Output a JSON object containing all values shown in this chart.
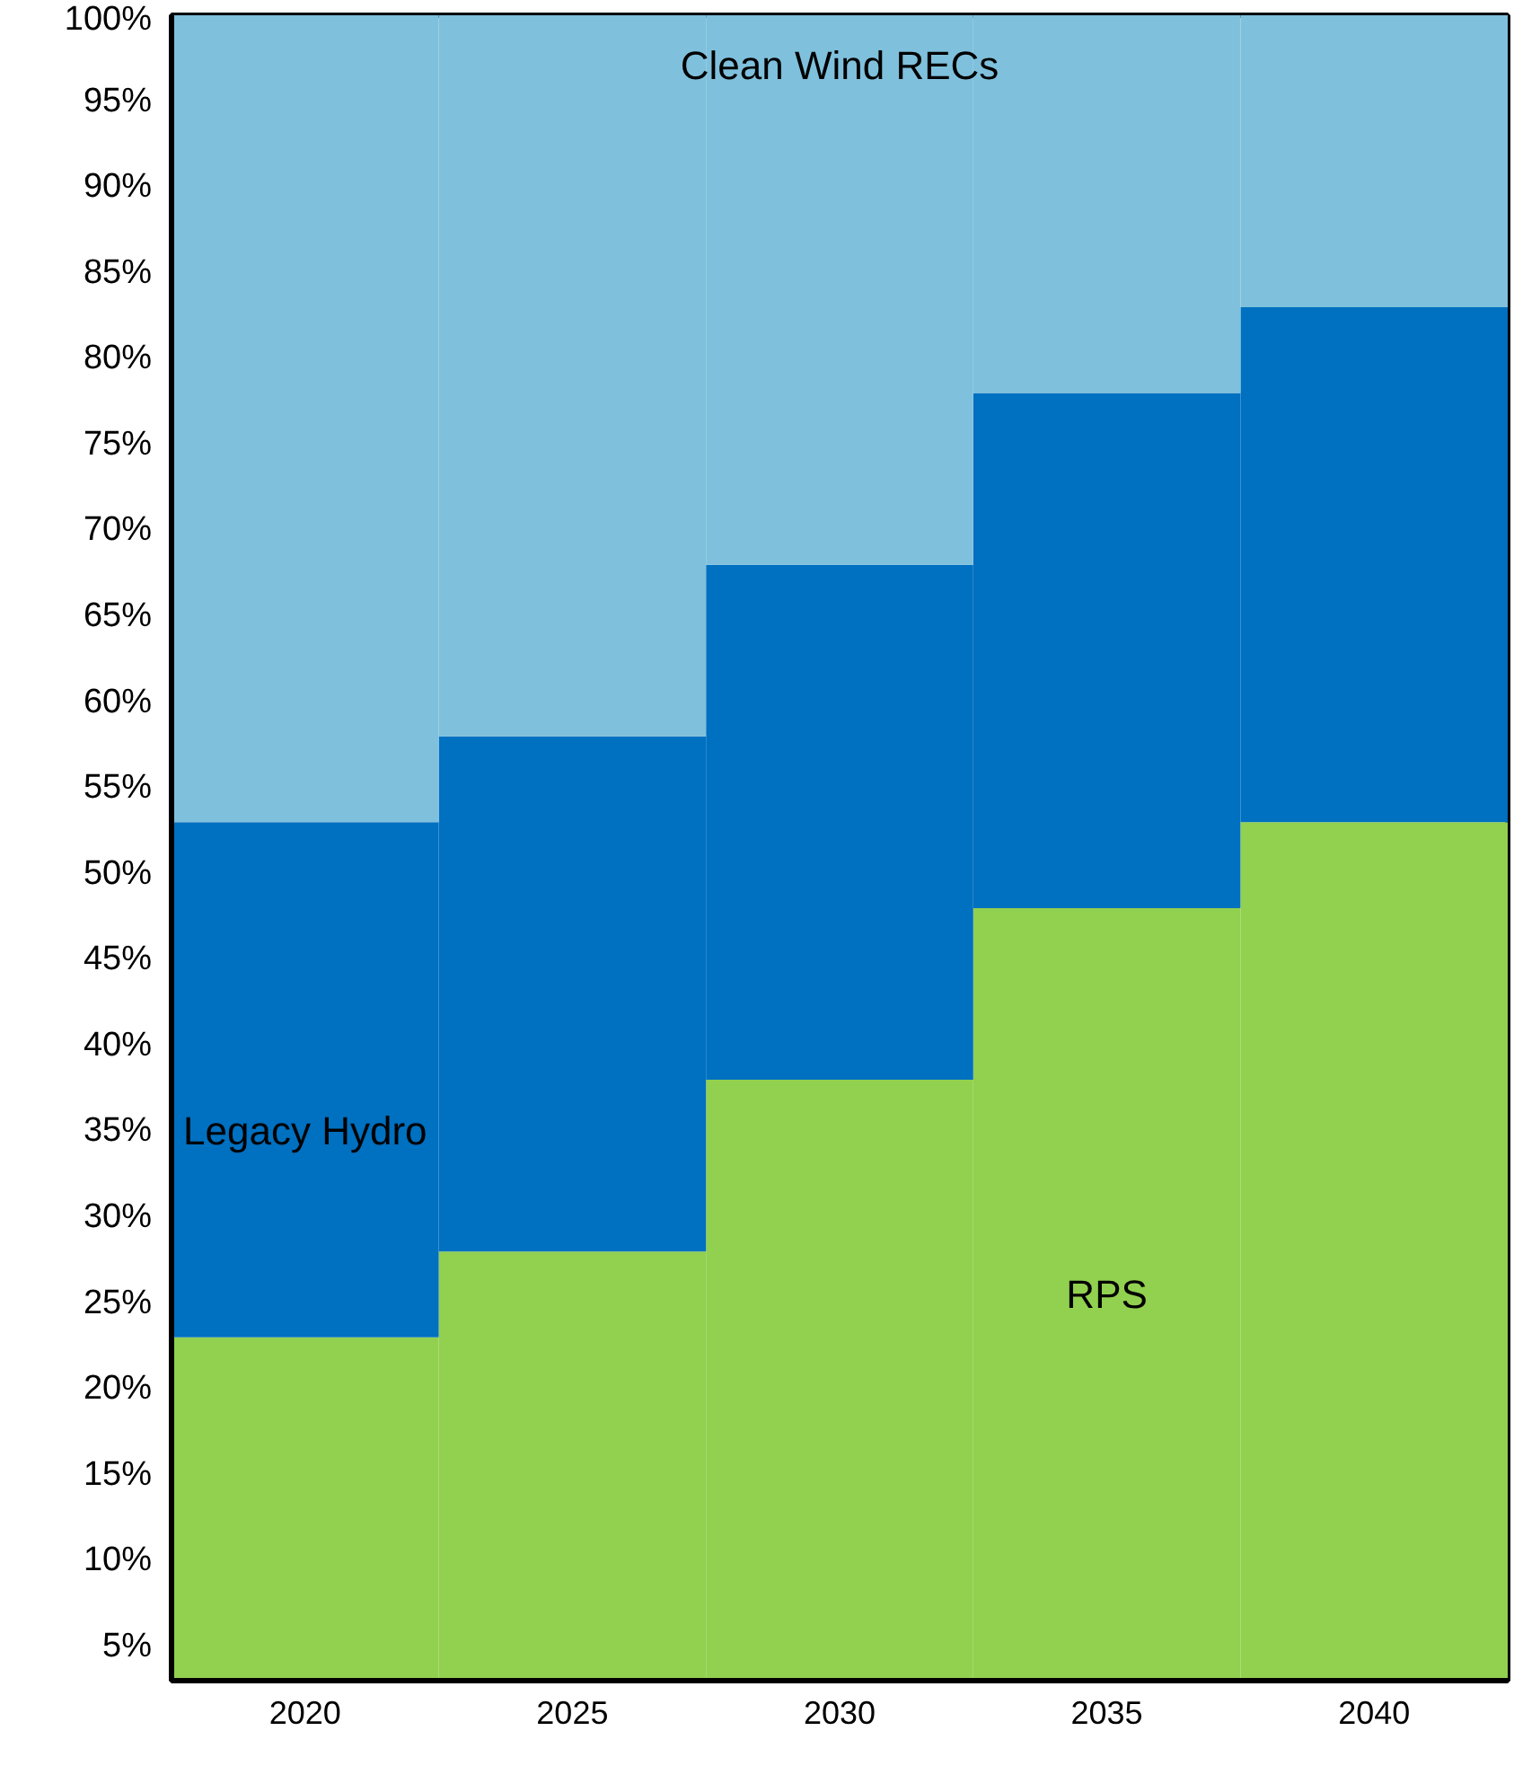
{
  "chart_data": {
    "type": "bar",
    "stacked": true,
    "categories": [
      "2020",
      "2025",
      "2030",
      "2035",
      "2040"
    ],
    "series": [
      {
        "name": "RPS",
        "color": "#92d050",
        "values": [
          23,
          28,
          38,
          48,
          53
        ]
      },
      {
        "name": "Legacy Hydro",
        "color": "#0070c0",
        "values": [
          30,
          30,
          30,
          30,
          30
        ]
      },
      {
        "name": "Clean Wind RECs",
        "color": "#7fc0dc",
        "values": [
          47,
          42,
          32,
          22,
          17
        ]
      }
    ],
    "ylim": [
      3,
      100
    ],
    "yticks": [
      {
        "value": 5,
        "label": "5%"
      },
      {
        "value": 10,
        "label": "10%"
      },
      {
        "value": 15,
        "label": "15%"
      },
      {
        "value": 20,
        "label": "20%"
      },
      {
        "value": 25,
        "label": "25%"
      },
      {
        "value": 30,
        "label": "30%"
      },
      {
        "value": 35,
        "label": "35%"
      },
      {
        "value": 40,
        "label": "40%"
      },
      {
        "value": 45,
        "label": "45%"
      },
      {
        "value": 50,
        "label": "50%"
      },
      {
        "value": 55,
        "label": "55%"
      },
      {
        "value": 60,
        "label": "60%"
      },
      {
        "value": 65,
        "label": "65%"
      },
      {
        "value": 70,
        "label": "70%"
      },
      {
        "value": 75,
        "label": "75%"
      },
      {
        "value": 80,
        "label": "80%"
      },
      {
        "value": 85,
        "label": "85%"
      },
      {
        "value": 90,
        "label": "90%"
      },
      {
        "value": 95,
        "label": "95%"
      },
      {
        "value": 100,
        "label": "100%"
      }
    ],
    "grid": false,
    "legend": false
  }
}
